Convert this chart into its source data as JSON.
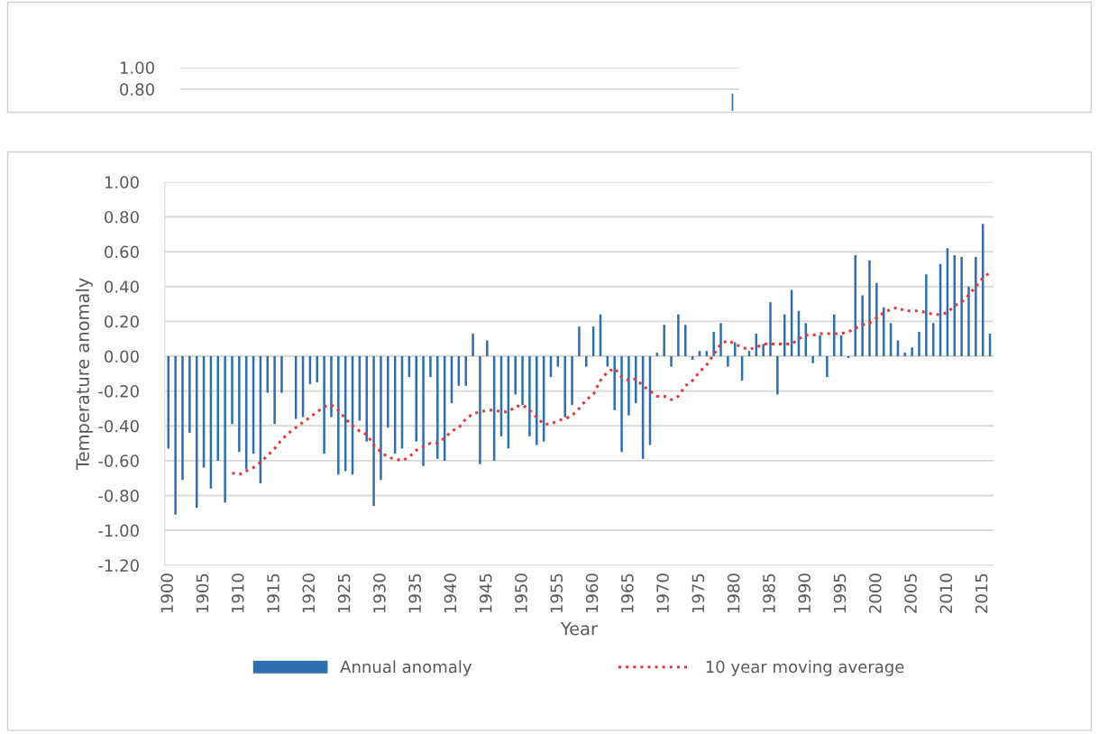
{
  "chart_data": [
    {
      "type": "bar",
      "categories": [
        null,
        null,
        null,
        null,
        null,
        null,
        null,
        null,
        null,
        null,
        null,
        null,
        null,
        null,
        null,
        null,
        null,
        null,
        null,
        null,
        null,
        null,
        null,
        null,
        null,
        null,
        null,
        null,
        null,
        null,
        null,
        null,
        null,
        null,
        null,
        null,
        null,
        null,
        null,
        null,
        null,
        null,
        null,
        null,
        null,
        null,
        null,
        null,
        null,
        null,
        null,
        null,
        null,
        null,
        null,
        null,
        null,
        null,
        null,
        null,
        null,
        null,
        null,
        null,
        null,
        null,
        null,
        null,
        null,
        null,
        null,
        null,
        null,
        null,
        null,
        null,
        null,
        null,
        null,
        null,
        null,
        null,
        null,
        null,
        null,
        null,
        null,
        null,
        null,
        null,
        null,
        null,
        null,
        null,
        null,
        null,
        null,
        null,
        null,
        null,
        null,
        null,
        null,
        null,
        null,
        null,
        null,
        null,
        null,
        null,
        null,
        null,
        null,
        null,
        null,
        null,
        null
      ],
      "values": [
        null,
        null,
        null,
        null,
        null,
        null,
        null,
        null,
        null,
        null,
        null,
        null,
        null,
        null,
        null,
        null,
        null,
        null,
        null,
        null,
        null,
        null,
        null,
        null,
        null,
        null,
        null,
        null,
        null,
        null,
        null,
        null,
        null,
        null,
        null,
        null,
        null,
        null,
        null,
        null,
        null,
        null,
        null,
        null,
        null,
        null,
        null,
        null,
        null,
        null,
        null,
        null,
        null,
        null,
        null,
        null,
        null,
        null,
        null,
        null,
        null,
        null,
        null,
        null,
        null,
        null,
        null,
        null,
        null,
        null,
        null,
        null,
        null,
        null,
        null,
        null,
        null,
        null,
        null,
        null,
        null,
        null,
        null,
        null,
        null,
        null,
        null,
        null,
        null,
        null,
        null,
        null,
        null,
        null,
        null,
        null,
        null,
        null,
        null,
        null,
        null,
        null,
        null,
        null,
        null,
        null,
        null,
        null,
        null,
        null,
        null,
        null,
        null,
        null,
        null,
        0.76,
        null
      ],
      "color": "#2f6fad",
      "ylim": [
        0.6,
        1.0
      ],
      "yticks": [
        {
          "value": 0.8,
          "label": "0.80"
        },
        {
          "value": 1.0,
          "label": "1.00"
        }
      ],
      "grid": "y",
      "tick_labels": "y",
      "legend": false
    },
    {
      "type": "bar",
      "xlabel": "Year",
      "ylabel": "Temperature anomaly",
      "categories": [
        "1900",
        null,
        null,
        null,
        null,
        "1905",
        null,
        null,
        null,
        null,
        "1910",
        null,
        null,
        null,
        null,
        "1915",
        null,
        null,
        null,
        null,
        "1920",
        null,
        null,
        null,
        null,
        "1925",
        null,
        null,
        null,
        null,
        "1930",
        null,
        null,
        null,
        null,
        "1935",
        null,
        null,
        null,
        null,
        "1940",
        null,
        null,
        null,
        null,
        "1945",
        null,
        null,
        null,
        null,
        "1950",
        null,
        null,
        null,
        null,
        "1955",
        null,
        null,
        null,
        null,
        "1960",
        null,
        null,
        null,
        null,
        "1965",
        null,
        null,
        null,
        null,
        "1970",
        null,
        null,
        null,
        null,
        "1975",
        null,
        null,
        null,
        null,
        "1980",
        null,
        null,
        null,
        null,
        "1985",
        null,
        null,
        null,
        null,
        "1990",
        null,
        null,
        null,
        null,
        "1995",
        null,
        null,
        null,
        null,
        "2000",
        null,
        null,
        null,
        null,
        "2005",
        null,
        null,
        null,
        null,
        "2010",
        null,
        null,
        null,
        null,
        "2015",
        null
      ],
      "series": [
        {
          "name": "Annual anomaly",
          "type": "bar",
          "color": "#2f6fad",
          "values": [
            -0.53,
            -0.91,
            -0.71,
            -0.44,
            -0.87,
            -0.64,
            -0.76,
            -0.6,
            -0.84,
            -0.39,
            -0.55,
            -0.65,
            -0.56,
            -0.73,
            -0.21,
            -0.39,
            -0.21,
            null,
            -0.36,
            -0.35,
            -0.16,
            -0.15,
            -0.56,
            -0.35,
            -0.68,
            -0.66,
            -0.68,
            -0.37,
            -0.49,
            -0.86,
            -0.71,
            -0.41,
            -0.56,
            -0.53,
            -0.12,
            -0.49,
            -0.63,
            -0.12,
            -0.59,
            -0.6,
            -0.27,
            -0.17,
            -0.17,
            0.13,
            -0.62,
            0.09,
            -0.6,
            -0.46,
            -0.53,
            -0.22,
            -0.28,
            -0.46,
            -0.51,
            -0.49,
            -0.12,
            -0.06,
            -0.35,
            -0.28,
            0.17,
            -0.06,
            0.17,
            0.24,
            -0.06,
            -0.31,
            -0.55,
            -0.34,
            -0.27,
            -0.59,
            -0.51,
            0.02,
            0.18,
            -0.06,
            0.24,
            0.18,
            -0.02,
            0.03,
            0.03,
            0.14,
            0.19,
            -0.06,
            0.08,
            -0.14,
            0.03,
            0.13,
            0.07,
            0.31,
            -0.22,
            0.24,
            0.38,
            0.26,
            0.19,
            -0.04,
            0.12,
            -0.12,
            0.24,
            0.12,
            -0.01,
            0.58,
            0.35,
            0.55,
            0.42,
            0.28,
            0.19,
            0.09,
            0.02,
            0.05,
            0.14,
            0.47,
            0.19,
            0.53,
            0.62,
            0.58,
            0.57,
            0.4,
            0.57,
            0.76,
            0.13
          ]
        },
        {
          "name": "10 year moving average",
          "type": "line",
          "color": "#e0393e",
          "line_style": "dotted",
          "marker": "none",
          "values": [
            null,
            null,
            null,
            null,
            null,
            null,
            null,
            null,
            null,
            -0.67,
            -0.68,
            -0.66,
            -0.64,
            -0.61,
            -0.57,
            -0.53,
            -0.48,
            -0.44,
            -0.41,
            -0.38,
            -0.35,
            -0.32,
            -0.29,
            -0.28,
            -0.31,
            -0.36,
            -0.4,
            -0.43,
            -0.45,
            -0.51,
            -0.55,
            -0.58,
            -0.59,
            -0.6,
            -0.58,
            -0.54,
            -0.52,
            -0.5,
            -0.5,
            -0.47,
            -0.43,
            -0.41,
            -0.36,
            -0.33,
            -0.32,
            -0.31,
            -0.31,
            -0.32,
            -0.32,
            -0.29,
            -0.28,
            -0.31,
            -0.35,
            -0.39,
            -0.39,
            -0.37,
            -0.36,
            -0.34,
            -0.3,
            -0.25,
            -0.22,
            -0.14,
            -0.09,
            -0.07,
            -0.12,
            -0.14,
            -0.13,
            -0.17,
            -0.2,
            -0.23,
            -0.23,
            -0.25,
            -0.23,
            -0.17,
            -0.14,
            -0.09,
            -0.05,
            0.01,
            0.07,
            0.09,
            0.07,
            0.05,
            0.04,
            0.05,
            0.07,
            0.07,
            0.07,
            0.07,
            0.07,
            0.1,
            0.12,
            0.12,
            0.13,
            0.13,
            0.13,
            0.13,
            0.14,
            0.16,
            0.18,
            0.19,
            0.22,
            0.25,
            0.27,
            0.28,
            0.26,
            0.26,
            0.26,
            0.25,
            0.24,
            0.24,
            0.25,
            0.29,
            0.31,
            0.35,
            0.4,
            0.45,
            0.48
          ]
        }
      ],
      "ylim": [
        -1.2,
        1.0
      ],
      "yticks": [
        {
          "value": -1.2,
          "label": "-1.20"
        },
        {
          "value": -1.0,
          "label": "-1.00"
        },
        {
          "value": -0.8,
          "label": "-0.80"
        },
        {
          "value": -0.6,
          "label": "-0.60"
        },
        {
          "value": -0.4,
          "label": "-0.40"
        },
        {
          "value": -0.2,
          "label": "-0.20"
        },
        {
          "value": 0,
          "label": "0.00"
        },
        {
          "value": 0.2,
          "label": "0.20"
        },
        {
          "value": 0.4,
          "label": "0.40"
        },
        {
          "value": 0.6,
          "label": "0.60"
        },
        {
          "value": 0.8,
          "label": "0.80"
        },
        {
          "value": 1.0,
          "label": "1.00"
        }
      ],
      "grid": "y",
      "legend": "bottom"
    }
  ]
}
